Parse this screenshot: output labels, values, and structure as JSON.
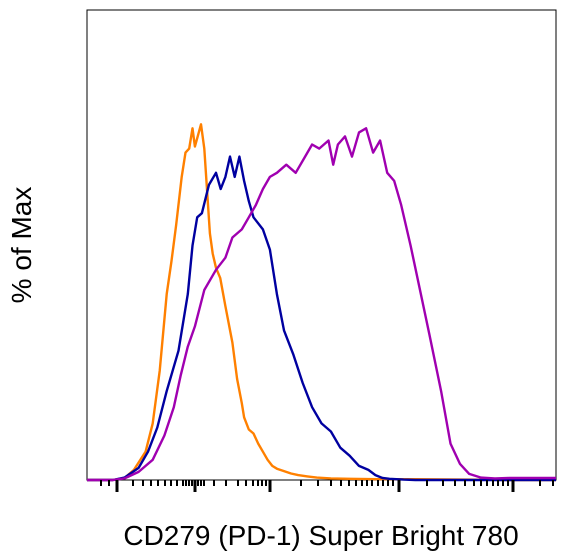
{
  "chart_data": {
    "type": "line",
    "title": "",
    "xlabel": "CD279 (PD-1) Super Bright 780",
    "ylabel": "% of Max",
    "x_scale": "log",
    "x_tick_labels": [],
    "y_tick_labels": [],
    "xlim": [
      0,
      100
    ],
    "ylim": [
      0,
      100
    ],
    "grid": false,
    "legend": "none",
    "series": [
      {
        "color": "#ff8000",
        "x": [
          0.0,
          5.5,
          8.0,
          10.0,
          12.5,
          14.0,
          15.5,
          17.0,
          18.0,
          19.0,
          20.2,
          21.0,
          21.8,
          22.5,
          23.0,
          23.6,
          24.3,
          25.0,
          25.7,
          26.2,
          26.8,
          27.5,
          28.4,
          29.5,
          31.0,
          32.0,
          33.0,
          33.5,
          34.5,
          35.5,
          36.5,
          37.5,
          38.5,
          39.5,
          40.5,
          42.0,
          43.5,
          45.0,
          47.0,
          49.0,
          52.0,
          56.0,
          62.0,
          70.0,
          80.0,
          90.0,
          100.0
        ],
        "y": [
          0.0,
          0.0,
          0.5,
          2.5,
          7.0,
          14.0,
          27.0,
          46.0,
          54.0,
          63.0,
          75.0,
          81.0,
          82.0,
          87.0,
          82.5,
          85.0,
          88.0,
          82.0,
          70.0,
          61.0,
          56.0,
          52.5,
          50.0,
          43.0,
          34.0,
          25.0,
          19.0,
          15.5,
          12.5,
          11.5,
          9.0,
          7.0,
          5.0,
          3.5,
          2.8,
          2.2,
          1.6,
          1.2,
          0.9,
          0.6,
          0.4,
          0.3,
          0.2,
          0.2,
          0.1,
          0.0,
          0.0
        ]
      },
      {
        "color": "#0000a0",
        "x": [
          0.0,
          5.5,
          8.0,
          11.0,
          13.0,
          15.0,
          17.0,
          19.5,
          21.5,
          22.5,
          23.5,
          24.5,
          26.0,
          27.5,
          28.5,
          29.5,
          30.5,
          31.5,
          32.5,
          33.5,
          34.5,
          35.5,
          37.5,
          39.0,
          40.5,
          42.0,
          44.0,
          46.0,
          48.0,
          50.0,
          52.0,
          54.0,
          56.0,
          58.0,
          60.0,
          61.5,
          63.0,
          64.5,
          66.0,
          67.5,
          70.0,
          75.0,
          80.0,
          90.0,
          100.0
        ],
        "y": [
          0.0,
          0.0,
          0.6,
          3.0,
          7.0,
          13.0,
          22.0,
          32.0,
          46.0,
          58.0,
          65.0,
          66.0,
          73.0,
          76.0,
          72.0,
          75.0,
          80.0,
          75.0,
          80.0,
          74.0,
          69.0,
          65.0,
          62.0,
          57.0,
          46.0,
          37.0,
          31.0,
          24.0,
          18.0,
          14.0,
          12.0,
          8.0,
          6.0,
          3.5,
          2.5,
          1.2,
          0.5,
          0.3,
          0.2,
          0.1,
          0.0,
          0.0,
          0.0,
          0.0,
          0.0
        ]
      },
      {
        "color": "#a000b0",
        "x": [
          0.0,
          5.5,
          8.0,
          11.0,
          14.0,
          16.5,
          18.5,
          20.0,
          21.5,
          23.0,
          25.0,
          27.5,
          29.5,
          31.0,
          33.0,
          34.5,
          36.0,
          37.5,
          39.0,
          40.5,
          42.5,
          44.5,
          46.5,
          48.0,
          49.5,
          51.5,
          52.5,
          53.5,
          55.0,
          56.5,
          58.0,
          59.5,
          61.0,
          62.5,
          64.0,
          65.5,
          67.0,
          69.0,
          71.0,
          73.0,
          75.5,
          77.5,
          79.5,
          81.5,
          84.0,
          87.0,
          90.0,
          95.0,
          100.0
        ],
        "y": [
          0.0,
          0.0,
          0.4,
          2.0,
          5.0,
          11.0,
          18.0,
          26.0,
          33.0,
          38.0,
          47.0,
          52.0,
          55.0,
          60.0,
          62.0,
          65.0,
          68.0,
          72.0,
          75.0,
          76.0,
          78.0,
          76.0,
          80.0,
          83.0,
          82.0,
          84.0,
          78.0,
          83.0,
          85.0,
          80.0,
          86.0,
          87.0,
          81.0,
          84.0,
          76.0,
          74.0,
          68.0,
          58.0,
          47.0,
          36.0,
          22.0,
          9.0,
          4.0,
          1.5,
          0.6,
          0.4,
          0.5,
          0.5,
          0.5
        ]
      }
    ]
  }
}
